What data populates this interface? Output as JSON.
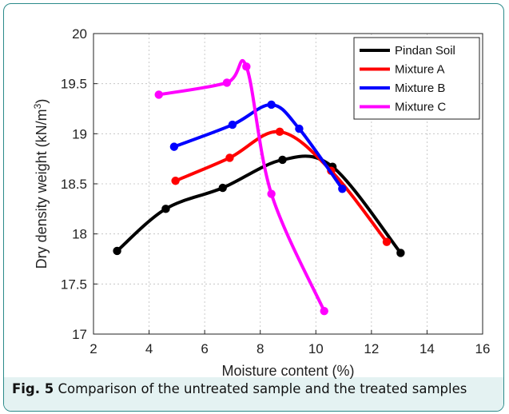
{
  "caption": {
    "label": "Fig. 5",
    "text": "Comparison of the untreated sample and the treated samples"
  },
  "chart_data": {
    "type": "line",
    "title": "",
    "xlabel": "Moisture content (%)",
    "ylabel": "Dry density weight (kN/m3)",
    "ylabel_main": "Dry density weight (kN/m",
    "ylabel_sup": "3",
    "ylabel_end": ")",
    "xlim": [
      2,
      16
    ],
    "ylim": [
      17,
      20
    ],
    "xticks": [
      2,
      4,
      6,
      8,
      10,
      12,
      14,
      16
    ],
    "yticks": [
      17,
      17.5,
      18,
      18.5,
      19,
      19.5,
      20
    ],
    "grid": "dotted",
    "legend_position": "top-right",
    "series": [
      {
        "name": "Pindan Soil",
        "color": "#000000",
        "points": [
          [
            2.85,
            17.83
          ],
          [
            4.6,
            18.25
          ],
          [
            6.65,
            18.46
          ],
          [
            8.8,
            18.74
          ],
          [
            10.6,
            18.67
          ],
          [
            13.05,
            17.81
          ]
        ]
      },
      {
        "name": "Mixture A",
        "color": "#ff0000",
        "points": [
          [
            4.95,
            18.53
          ],
          [
            6.9,
            18.76
          ],
          [
            8.7,
            19.02
          ],
          [
            10.55,
            18.63
          ],
          [
            12.55,
            17.92
          ]
        ]
      },
      {
        "name": "Mixture B",
        "color": "#0000ff",
        "points": [
          [
            4.9,
            18.87
          ],
          [
            7.0,
            19.09
          ],
          [
            8.4,
            19.29
          ],
          [
            9.4,
            19.05
          ],
          [
            10.95,
            18.45
          ]
        ]
      },
      {
        "name": "Mixture C",
        "color": "#ff00ff",
        "points": [
          [
            4.35,
            19.39
          ],
          [
            6.8,
            19.51
          ],
          [
            7.5,
            19.67
          ],
          [
            8.4,
            18.4
          ],
          [
            10.3,
            17.23
          ]
        ]
      }
    ]
  }
}
